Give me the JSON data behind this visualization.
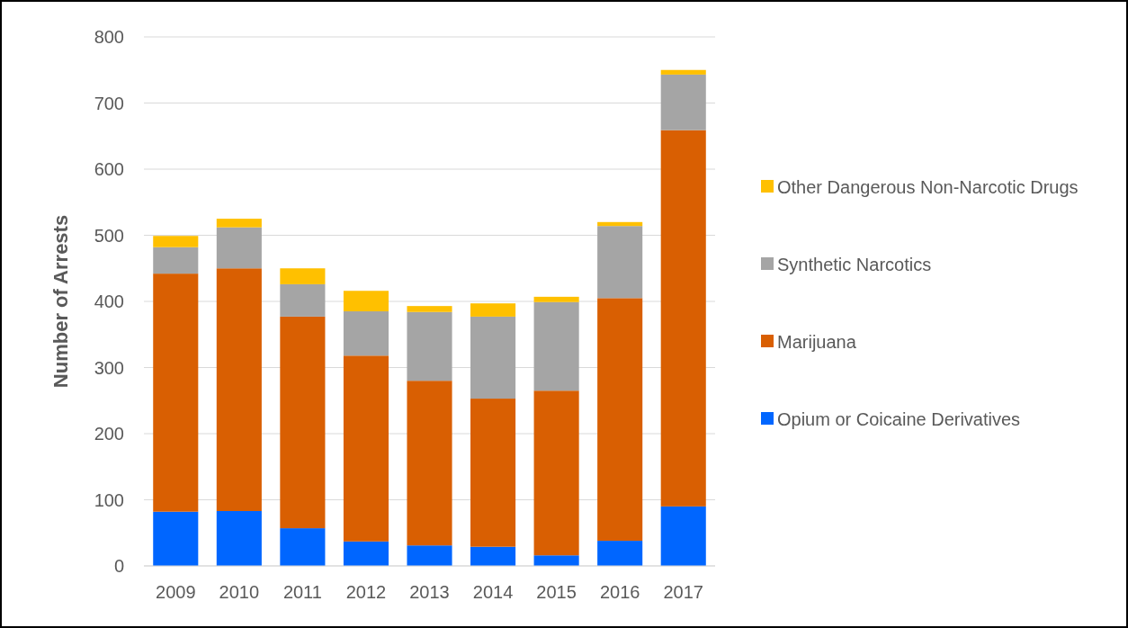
{
  "chart_data": {
    "type": "bar",
    "ylabel": "Number of Arrests",
    "categories": [
      "2009",
      "2010",
      "2011",
      "2012",
      "2013",
      "2014",
      "2015",
      "2016",
      "2017"
    ],
    "stacked": true,
    "ylim": [
      0,
      800
    ],
    "yticks": [
      0,
      100,
      200,
      300,
      400,
      500,
      600,
      700,
      800
    ],
    "grid": "y",
    "legend": "right",
    "series": [
      {
        "name": "Opium or Coicaine Derivatives",
        "color": "#0066ff",
        "values": [
          82,
          83,
          57,
          37,
          31,
          29,
          16,
          38,
          90
        ]
      },
      {
        "name": "Marijuana",
        "color": "#d95f02",
        "values": [
          360,
          367,
          320,
          281,
          249,
          224,
          249,
          367,
          569
        ]
      },
      {
        "name": "Synthetic Narcotics",
        "color": "#a5a5a5",
        "values": [
          40,
          62,
          49,
          67,
          104,
          124,
          134,
          109,
          84
        ]
      },
      {
        "name": "Other Dangerous Non-Narcotic Drugs",
        "color": "#ffc000",
        "values": [
          17,
          13,
          24,
          31,
          9,
          20,
          8,
          6,
          7
        ]
      }
    ]
  }
}
